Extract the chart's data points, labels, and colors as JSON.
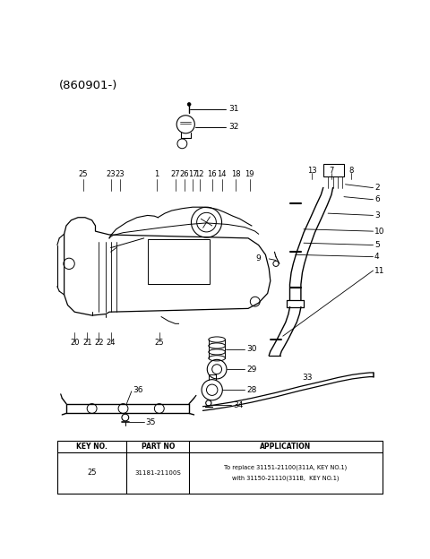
{
  "title": "(860901-)",
  "bg_color": "#ffffff",
  "line_color": "#000000",
  "table_headers": [
    "KEY NO.",
    "PART NO",
    "APPLICATION"
  ],
  "table_row": [
    "25",
    "31181-21100S",
    "To replace 31151-21100(311A, KEY NO.1)\nwith 31150-21110(311B,  KEY NO.1)"
  ],
  "figsize": [
    4.8,
    6.24
  ],
  "dpi": 100
}
